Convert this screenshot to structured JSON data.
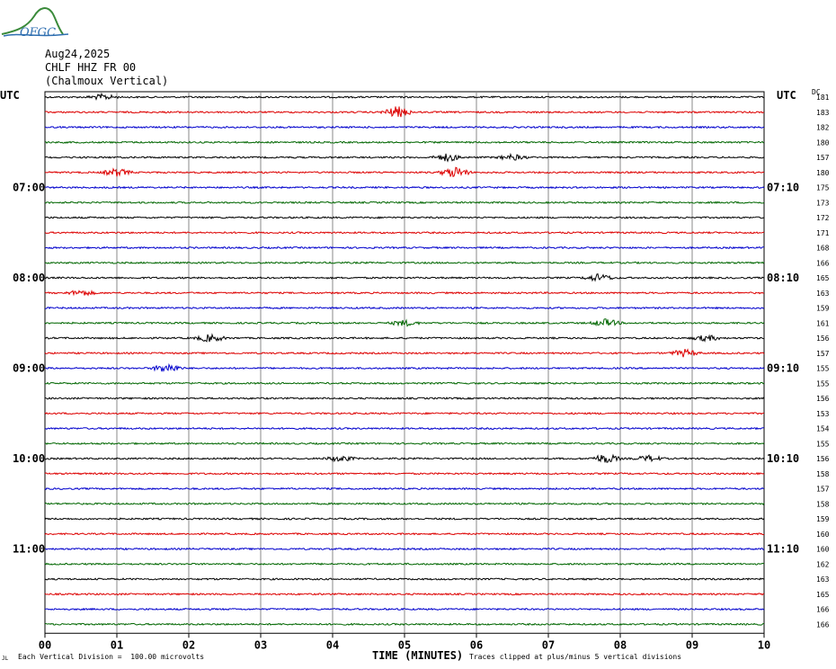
{
  "logo": {
    "text": "OFGC",
    "color": "#2f6fb0",
    "accent": "#3a8a3a"
  },
  "header": {
    "date": "Aug24,2025",
    "station": "CHLF HHZ FR 00",
    "location": "(Chalmoux Vertical)"
  },
  "axis": {
    "left_label": "UTC",
    "right_label": "UTC",
    "dc_label": "DC",
    "xlabel": "TIME (MINUTES)",
    "scale_note": "Each Vertical Division =  100.00 microvolts",
    "clip_note": "Traces clipped at plus/minus 5 vertical divisions",
    "corner_mark": "JL"
  },
  "left_time_labels": [
    {
      "row": 6,
      "text": "07:00"
    },
    {
      "row": 12,
      "text": "08:00"
    },
    {
      "row": 18,
      "text": "09:00"
    },
    {
      "row": 24,
      "text": "10:00"
    },
    {
      "row": 30,
      "text": "11:00"
    }
  ],
  "right_time_labels": [
    {
      "row": 6,
      "text": "07:10"
    },
    {
      "row": 12,
      "text": "08:10"
    },
    {
      "row": 18,
      "text": "09:10"
    },
    {
      "row": 24,
      "text": "10:10"
    },
    {
      "row": 30,
      "text": "11:10"
    }
  ],
  "colors": [
    "#000000",
    "#dd0000",
    "#0000cc",
    "#006600"
  ],
  "grid_color": "#888888",
  "chart_data": {
    "type": "line",
    "title": "",
    "xlabel": "TIME (MINUTES)",
    "ylabel": "",
    "xlim": [
      0,
      10
    ],
    "x_ticks": [
      "00",
      "01",
      "02",
      "03",
      "04",
      "05",
      "06",
      "07",
      "08",
      "09",
      "10"
    ],
    "rows": 36,
    "minutes_per_row": 10,
    "dc_offsets": [
      181,
      183,
      182,
      180,
      157,
      180,
      175,
      173,
      172,
      171,
      168,
      166,
      165,
      163,
      159,
      161,
      156,
      157,
      155,
      155,
      156,
      153,
      154,
      155,
      156,
      158,
      157,
      158,
      159,
      160,
      160,
      162,
      163,
      165,
      166,
      166
    ],
    "events": [
      {
        "row": 0,
        "minute": 0.8,
        "amplitude": 3
      },
      {
        "row": 1,
        "minute": 4.9,
        "amplitude": 6
      },
      {
        "row": 4,
        "minute": 5.6,
        "amplitude": 4
      },
      {
        "row": 4,
        "minute": 6.5,
        "amplitude": 3
      },
      {
        "row": 5,
        "minute": 1.0,
        "amplitude": 4
      },
      {
        "row": 5,
        "minute": 5.7,
        "amplitude": 6
      },
      {
        "row": 12,
        "minute": 7.7,
        "amplitude": 4
      },
      {
        "row": 13,
        "minute": 0.5,
        "amplitude": 3
      },
      {
        "row": 15,
        "minute": 5.0,
        "amplitude": 3
      },
      {
        "row": 15,
        "minute": 7.8,
        "amplitude": 4
      },
      {
        "row": 16,
        "minute": 2.3,
        "amplitude": 4
      },
      {
        "row": 16,
        "minute": 9.2,
        "amplitude": 3
      },
      {
        "row": 17,
        "minute": 8.9,
        "amplitude": 4
      },
      {
        "row": 18,
        "minute": 1.7,
        "amplitude": 5
      },
      {
        "row": 24,
        "minute": 7.8,
        "amplitude": 5
      },
      {
        "row": 24,
        "minute": 8.4,
        "amplitude": 3
      },
      {
        "row": 24,
        "minute": 4.1,
        "amplitude": 3
      }
    ]
  }
}
